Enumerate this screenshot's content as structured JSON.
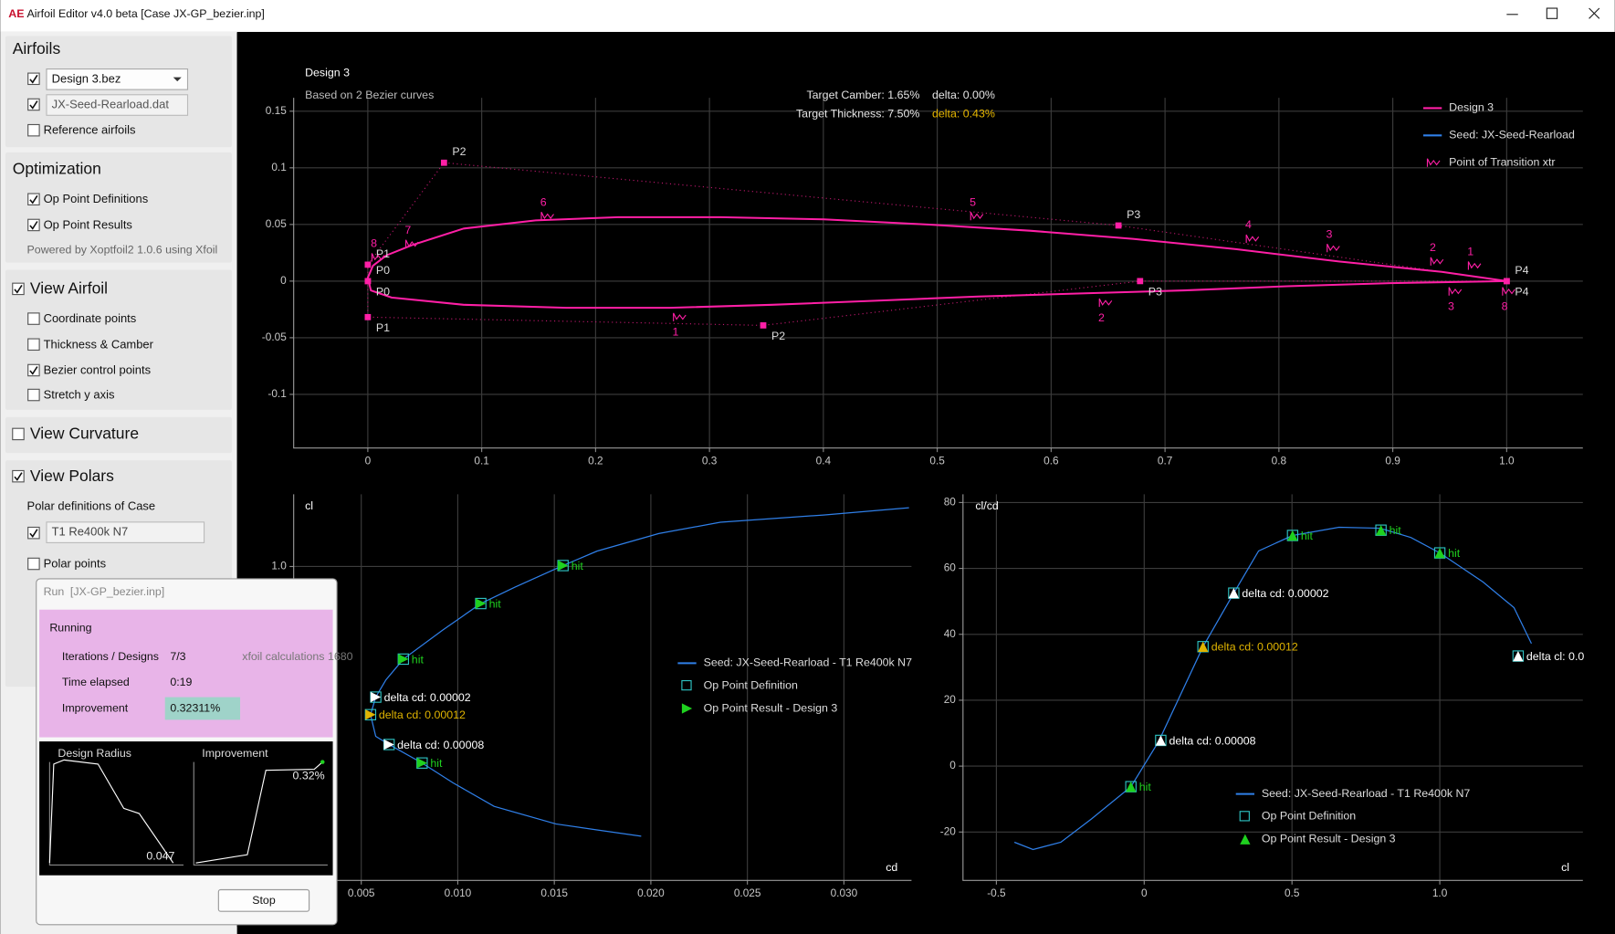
{
  "window": {
    "logo": "AE",
    "title": "Airfoil Editor  v4.0 beta  [Case JX-GP_bezier.inp]"
  },
  "sidebar": {
    "airfoils": {
      "title": "Airfoils",
      "items": [
        {
          "label": "Design   3.bez",
          "checked": true
        },
        {
          "label": "JX-Seed-Rearload.dat",
          "checked": true
        },
        {
          "label": "Reference airfoils",
          "checked": false
        }
      ]
    },
    "optimization": {
      "title": "Optimization",
      "items": [
        {
          "label": "Op Point Definitions",
          "checked": true
        },
        {
          "label": "Op Point Results",
          "checked": true
        }
      ],
      "note": "Powered by Xoptfoil2 1.0.6 using Xfoil"
    },
    "view_airfoil": {
      "title": "View Airfoil",
      "checked": true,
      "items": [
        {
          "label": "Coordinate points",
          "checked": false
        },
        {
          "label": "Thickness & Camber",
          "checked": false
        },
        {
          "label": "Bezier control points",
          "checked": true
        },
        {
          "label": "Stretch y axis",
          "checked": false
        }
      ]
    },
    "view_curvature": {
      "title": "View Curvature",
      "checked": false
    },
    "view_polars": {
      "title": "View Polars",
      "checked": true,
      "subtitle": "Polar definitions of Case",
      "items": [
        {
          "label": "T1 Re400k N7",
          "checked": true
        },
        {
          "label": "Polar points",
          "checked": false
        }
      ]
    }
  },
  "run_dialog": {
    "title": "Run",
    "case": "[JX-GP_bezier.inp]",
    "status": "Running",
    "rows": [
      {
        "label": "Iterations / Designs",
        "value": "7/3"
      },
      {
        "label": "Time elapsed",
        "value": "0:19"
      },
      {
        "label": "Improvement",
        "value": "0.32311%"
      }
    ],
    "xfoil_note": "xfoil calculations 1680",
    "charts": [
      {
        "title": "Design Radius",
        "end_label": "0.047"
      },
      {
        "title": "Improvement",
        "end_label": "0.32%"
      }
    ],
    "button": "Stop"
  },
  "airfoil_plot": {
    "type": "line",
    "title": "Design 3",
    "subtitle": "Based on 2 Bezier curves",
    "targets": [
      {
        "label": "Target Camber: 1.65%",
        "delta": "delta: 0.00%",
        "delta_color": "#e6e6e6"
      },
      {
        "label": "Target Thickness: 7.50%",
        "delta": "delta: 0.43%",
        "delta_color": "#e8b800"
      }
    ],
    "xlim": [
      -0.0651,
      1.0669
    ],
    "ylim": [
      -0.1473,
      0.1618
    ],
    "xticks": [
      0,
      0.1,
      0.2,
      0.3,
      0.4,
      0.5,
      0.6,
      0.7,
      0.8,
      0.9,
      {
        "value": 1,
        "label": "1.0"
      }
    ],
    "yticks": [
      -0.1,
      -0.05,
      0,
      0.05,
      0.1,
      0.15
    ],
    "grid": true,
    "series": [
      {
        "color": "#ff1fa6",
        "x": [
          1.0,
          0.943,
          0.8526,
          0.7622,
          0.6718,
          0.5814,
          0.491,
          0.4005,
          0.3101,
          0.2197,
          0.1474,
          0.0841,
          0.0389,
          0.0163,
          0.0045,
          0,
          0.0027,
          0.0208,
          0.0841,
          0.1745,
          0.2649,
          0.3553,
          0.4458,
          0.5362,
          0.6266,
          0.717,
          0.8074,
          0.8978,
          1.0
        ],
        "y": [
          0,
          0.0082,
          0.0173,
          0.0282,
          0.0373,
          0.0445,
          0.05,
          0.0545,
          0.0564,
          0.0564,
          0.0536,
          0.0464,
          0.0318,
          0.0227,
          0.0136,
          0.003,
          -0.0082,
          -0.0145,
          -0.0209,
          -0.0236,
          -0.0236,
          -0.0209,
          -0.0173,
          -0.0136,
          -0.0109,
          -0.0082,
          -0.0045,
          -0.0018,
          0
        ]
      }
    ],
    "control_points": {
      "upper": [
        {
          "label": "P0",
          "x": 0,
          "y": 0
        },
        {
          "label": "P1",
          "x": 0,
          "y": 0.0145
        },
        {
          "label": "P2",
          "x": 0.0669,
          "y": 0.1045
        },
        {
          "label": "P3",
          "x": 0.6591,
          "y": 0.0491
        },
        {
          "label": "P4",
          "x": 1.0,
          "y": 0
        }
      ],
      "lower": [
        {
          "label": "P0",
          "x": 0,
          "y": 0
        },
        {
          "label": "P1",
          "x": 0,
          "y": -0.0318
        },
        {
          "label": "P2",
          "x": 0.3472,
          "y": -0.0391
        },
        {
          "label": "P3",
          "x": 0.6781,
          "y": 0
        },
        {
          "label": "P4",
          "x": 1.0,
          "y": 0
        }
      ]
    },
    "xtr_points": {
      "upper": [
        {
          "label": "8",
          "x": 0.0072,
          "y": 0.0209
        },
        {
          "label": "7",
          "x": 0.037,
          "y": 0.0327
        },
        {
          "label": "6",
          "x": 0.156,
          "y": 0.0573
        },
        {
          "label": "5",
          "x": 0.533,
          "y": 0.0573
        },
        {
          "label": "4",
          "x": 0.775,
          "y": 0.0373
        },
        {
          "label": "3",
          "x": 0.846,
          "y": 0.0291
        },
        {
          "label": "2",
          "x": 0.937,
          "y": 0.0173
        },
        {
          "label": "1",
          "x": 0.97,
          "y": 0.0136
        }
      ],
      "lower": [
        {
          "label": "1",
          "x": 0.272,
          "y": -0.0318
        },
        {
          "label": "2",
          "x": 0.646,
          "y": -0.0191
        },
        {
          "label": "3",
          "x": 0.953,
          "y": -0.0091
        },
        {
          "label": "8",
          "x": 1.0,
          "y": -0.0091
        }
      ]
    },
    "legend": [
      {
        "name": "Design 3",
        "color": "#ff1fa6",
        "symbol": "line"
      },
      {
        "name": "Seed: JX-Seed-Rearload",
        "color": "#2f7fe8",
        "symbol": "line"
      },
      {
        "name": "Point of Transition xtr",
        "color": "#ff1fa6",
        "symbol": "xtr"
      }
    ]
  },
  "polar_cd": {
    "type": "line",
    "xlabel": "cd",
    "ylabel": "cl",
    "xlim": [
      0.0015,
      0.0335
    ],
    "ylim": [
      0,
      1.23
    ],
    "xticks": [
      0.005,
      {
        "value": 0.01,
        "label": "0.010"
      },
      0.015,
      {
        "value": 0.02,
        "label": "0.020"
      },
      0.025,
      {
        "value": 0.03,
        "label": "0.030"
      }
    ],
    "yticks": [
      {
        "value": 1,
        "label": "1.0"
      }
    ],
    "grid": true,
    "marker": "right",
    "series": [
      {
        "color": "#2f7fe8",
        "x": [
          0.03337,
          0.02894,
          0.0236,
          0.02041,
          0.01721,
          0.01545,
          0.01295,
          0.01119,
          0.00921,
          0.00718,
          0.00628,
          0.00575,
          0.00548,
          0.00575,
          0.00644,
          0.00815,
          0.00975,
          0.01188,
          0.01508,
          0.01721,
          0.0195
        ],
        "y": [
          1.187,
          1.164,
          1.141,
          1.105,
          1.049,
          1.003,
          0.934,
          0.882,
          0.797,
          0.705,
          0.639,
          0.584,
          0.528,
          0.459,
          0.433,
          0.374,
          0.311,
          0.236,
          0.18,
          0.161,
          0.141
        ]
      }
    ],
    "op_points": [
      {
        "x": 0.01545,
        "y": 1.003,
        "color": "#1fd11f",
        "label": "hit"
      },
      {
        "x": 0.01119,
        "y": 0.882,
        "color": "#1fd11f",
        "label": "hit"
      },
      {
        "x": 0.00718,
        "y": 0.705,
        "color": "#1fd11f",
        "label": "hit"
      },
      {
        "x": 0.00575,
        "y": 0.584,
        "color": "#ffffff",
        "label": "delta cd: 0.00002"
      },
      {
        "x": 0.00548,
        "y": 0.528,
        "color": "#e0b400",
        "label": "delta cd: 0.00012"
      },
      {
        "x": 0.00644,
        "y": 0.433,
        "color": "#ffffff",
        "label": "delta cd: 0.00008"
      },
      {
        "x": 0.00815,
        "y": 0.374,
        "color": "#1fd11f",
        "label": "hit"
      }
    ],
    "legend": [
      {
        "name": "Seed: JX-Seed-Rearload - T1 Re400k N7",
        "color": "#2f7fe8",
        "symbol": "line"
      },
      {
        "name": "Op Point Definition",
        "color": "#2ec4c4",
        "symbol": "square"
      },
      {
        "name": "Op Point Result - Design 3",
        "color": "#1fd11f",
        "symbol": "right"
      }
    ]
  },
  "polar_glide": {
    "type": "line",
    "xlabel": "cl",
    "ylabel": "cl/cd",
    "xlim": [
      -0.613,
      1.484
    ],
    "ylim": [
      -34.7,
      82.5
    ],
    "xticks": [
      -0.5,
      0,
      0.5,
      {
        "value": 1,
        "label": "1.0"
      }
    ],
    "yticks": [
      -20,
      0,
      20,
      40,
      60,
      80
    ],
    "grid": true,
    "marker": "up",
    "series": [
      {
        "color": "#2f7fe8",
        "x": [
          -0.439,
          -0.376,
          -0.282,
          -0.178,
          -0.045,
          0.049,
          0.199,
          0.303,
          0.387,
          0.502,
          0.659,
          0.798,
          0.902,
          1.0,
          1.146,
          1.251,
          1.31
        ],
        "y": [
          -23.1,
          -25.3,
          -23.1,
          -16.0,
          -6.25,
          7.5,
          36.25,
          52.5,
          65.3,
          70.0,
          72.5,
          72.2,
          69.4,
          64.7,
          55.9,
          48.1,
          37.2
        ]
      }
    ],
    "op_points": [
      {
        "x": 0.502,
        "y": 70.0,
        "color": "#1fd11f",
        "label": "hit"
      },
      {
        "x": 0.801,
        "y": 71.6,
        "color": "#1fd11f",
        "label": "hit"
      },
      {
        "x": 1.0,
        "y": 64.7,
        "color": "#1fd11f",
        "label": "hit"
      },
      {
        "x": 0.303,
        "y": 52.5,
        "color": "#ffffff",
        "label": "delta cd: 0.00002"
      },
      {
        "x": 0.199,
        "y": 36.25,
        "color": "#e0b400",
        "label": "delta cd: 0.00012"
      },
      {
        "x": 0.056,
        "y": 7.8,
        "color": "#ffffff",
        "label": "delta cd: 0.00008"
      },
      {
        "x": -0.045,
        "y": -6.25,
        "color": "#1fd11f",
        "label": "hit"
      },
      {
        "x": 1.265,
        "y": 33.4,
        "color": "#ffffff",
        "label": "delta cl: 0.0"
      }
    ],
    "legend": [
      {
        "name": "Seed: JX-Seed-Rearload - T1 Re400k N7",
        "color": "#2f7fe8",
        "symbol": "line"
      },
      {
        "name": "Op Point Definition",
        "color": "#2ec4c4",
        "symbol": "square"
      },
      {
        "name": "Op Point Result - Design 3",
        "color": "#1fd11f",
        "symbol": "up"
      }
    ]
  }
}
